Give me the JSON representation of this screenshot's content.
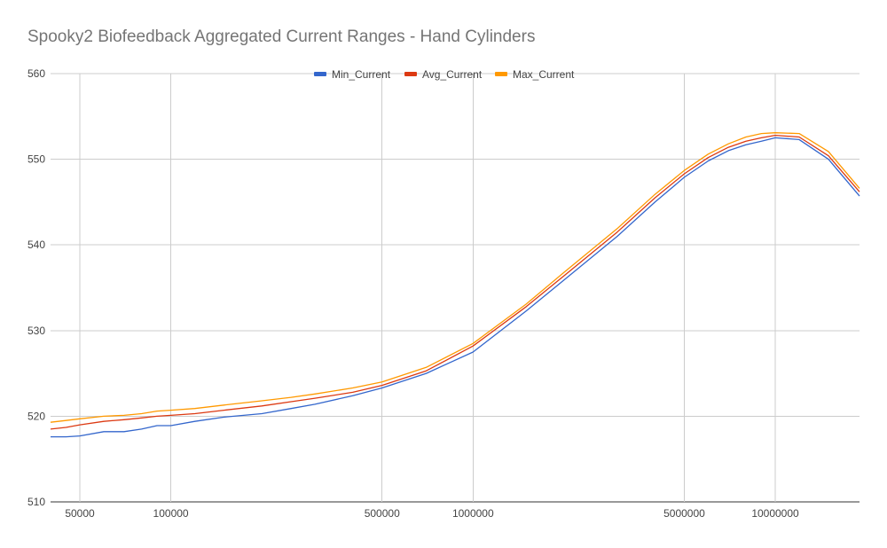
{
  "chart_data": {
    "type": "line",
    "title": "Spooky2 Biofeedback Aggregated Current Ranges - Hand Cylinders",
    "xlabel": "",
    "ylabel": "",
    "x_scale": "log",
    "xlim": [
      40000,
      19000000
    ],
    "ylim": [
      510,
      560
    ],
    "grid": true,
    "legend_position": "top",
    "x_ticks": [
      50000,
      100000,
      500000,
      1000000,
      5000000,
      10000000
    ],
    "x_tick_labels": [
      "50000",
      "100000",
      "500000",
      "1000000",
      "5000000",
      "10000000"
    ],
    "y_ticks": [
      510,
      520,
      530,
      540,
      550,
      560
    ],
    "y_tick_labels": [
      "510",
      "520",
      "530",
      "540",
      "550",
      "560"
    ],
    "x": [
      40000,
      45000,
      50000,
      60000,
      70000,
      80000,
      90000,
      100000,
      120000,
      150000,
      200000,
      250000,
      300000,
      400000,
      500000,
      700000,
      1000000,
      1500000,
      2000000,
      3000000,
      4000000,
      5000000,
      6000000,
      7000000,
      8000000,
      9000000,
      10000000,
      12000000,
      15000000,
      19000000
    ],
    "series": [
      {
        "name": "Min_Current",
        "color": "#3366cc",
        "values": [
          517.6,
          517.6,
          517.7,
          518.2,
          518.2,
          518.5,
          518.9,
          518.9,
          519.4,
          519.9,
          520.3,
          520.9,
          521.4,
          522.4,
          523.3,
          525.0,
          527.5,
          532.3,
          535.9,
          541.0,
          545.0,
          547.9,
          549.8,
          551.0,
          551.7,
          552.1,
          552.5,
          552.3,
          550.0,
          545.7
        ]
      },
      {
        "name": "Avg_Current",
        "color": "#dc3912",
        "values": [
          518.5,
          518.7,
          519.0,
          519.4,
          519.6,
          519.8,
          520.0,
          520.1,
          520.3,
          520.7,
          521.2,
          521.7,
          522.1,
          522.8,
          523.6,
          525.3,
          528.2,
          532.8,
          536.4,
          541.5,
          545.5,
          548.3,
          550.2,
          551.4,
          552.1,
          552.5,
          552.8,
          552.6,
          550.4,
          546.2
        ]
      },
      {
        "name": "Max_Current",
        "color": "#ff9900",
        "values": [
          519.3,
          519.5,
          519.7,
          520.0,
          520.1,
          520.3,
          520.6,
          520.7,
          520.9,
          521.3,
          521.8,
          522.2,
          522.6,
          523.3,
          524.0,
          525.7,
          528.5,
          533.1,
          536.8,
          541.9,
          545.9,
          548.7,
          550.6,
          551.8,
          552.6,
          553.0,
          553.1,
          553.0,
          550.9,
          546.6
        ]
      }
    ]
  }
}
